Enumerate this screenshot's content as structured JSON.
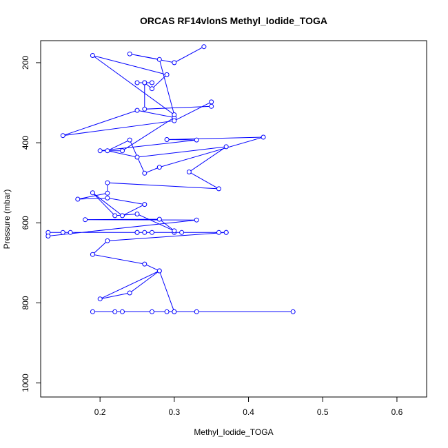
{
  "chart_data": {
    "type": "line",
    "title": "ORCAS RF14vlonS Methyl_Iodide_TOGA",
    "xlabel": "Methyl_Iodide_TOGA",
    "ylabel": "Pressure (mbar)",
    "xlim": [
      0.12,
      0.64
    ],
    "ylim": [
      1035,
      145
    ],
    "y_reversed": true,
    "xticks": [
      0.2,
      0.3,
      0.4,
      0.5,
      0.6
    ],
    "yticks": [
      200,
      400,
      600,
      800,
      1000
    ],
    "grid": false,
    "legend": "none",
    "color": "#0000ff",
    "series": [
      {
        "x": [
          0.46,
          0.33,
          0.3,
          0.29,
          0.27,
          0.23,
          0.22,
          0.19,
          0.3,
          0.28,
          0.24,
          0.2,
          0.28,
          0.26,
          0.19,
          0.21,
          0.37,
          0.37,
          0.36,
          0.31,
          0.3,
          0.27,
          0.26,
          0.25,
          0.25,
          0.16,
          0.15,
          0.13,
          0.13,
          0.33,
          0.18,
          0.28,
          0.3,
          0.25,
          0.22,
          0.19,
          0.23,
          0.26,
          0.21,
          0.17,
          0.21,
          0.21,
          0.36,
          0.32,
          0.37,
          0.25,
          0.21,
          0.24,
          0.26,
          0.28,
          0.42,
          0.29,
          0.33,
          0.2,
          0.23,
          0.3,
          0.25,
          0.15,
          0.3,
          0.35,
          0.35,
          0.26,
          0.26,
          0.27,
          0.25,
          0.26,
          0.27,
          0.29,
          0.19,
          0.3,
          0.28,
          0.24,
          0.3,
          0.34
        ],
        "y": [
          822,
          822,
          822,
          822,
          822,
          822,
          822,
          822,
          822,
          720,
          775,
          790,
          720,
          703,
          679,
          645,
          624,
          624,
          624,
          624,
          624,
          624,
          624,
          624,
          624,
          624,
          624,
          624,
          633,
          593,
          592,
          591,
          620,
          578,
          582,
          525,
          582,
          554,
          538,
          541,
          526,
          500,
          515,
          473,
          410,
          436,
          420,
          393,
          476,
          461,
          386,
          392,
          393,
          420,
          420,
          337,
          319,
          382,
          345,
          298,
          309,
          316,
          250,
          250,
          250,
          250,
          265,
          230,
          182,
          330,
          192,
          178,
          200,
          160
        ]
      }
    ]
  }
}
